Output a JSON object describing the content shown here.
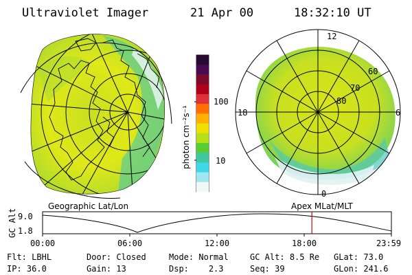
{
  "header": {
    "title": "Ultraviolet Imager",
    "date": "21 Apr 00",
    "time": "18:32:10 UT"
  },
  "geo_panel": {
    "label": "Geographic Lat/Lon"
  },
  "apex_panel": {
    "label": "Apex MLat/MLT",
    "mlt_labels": {
      "top": "12",
      "left": "18",
      "right": "6",
      "bottom": "0"
    },
    "lat_labels": [
      "60",
      "70",
      "80"
    ]
  },
  "colorbar": {
    "unit_label": "photon cm⁻²s⁻¹",
    "ticks": [
      "100",
      "10"
    ],
    "colors": [
      "#2a0a30",
      "#4a0a50",
      "#7a0a2a",
      "#b0001a",
      "#e0303a",
      "#ff7000",
      "#ffb000",
      "#f0e000",
      "#b8e018",
      "#58cc30",
      "#40c8a0",
      "#40d8e8",
      "#a0e8f0",
      "#f0f8f8"
    ]
  },
  "altitude_plot": {
    "y_label": "GC Alt",
    "y_ticks": [
      "9.0",
      "1.8"
    ],
    "x_ticks": [
      "00:00",
      "06:00",
      "12:00",
      "18:00",
      "23:59"
    ],
    "current_time_fraction": 0.772,
    "marker_color": "#cc0000"
  },
  "status": {
    "flt": {
      "label": "Flt:",
      "value": "LBHL"
    },
    "door": {
      "label": "Door:",
      "value": "Closed"
    },
    "mode": {
      "label": "Mode:",
      "value": "Normal"
    },
    "gc_alt": {
      "label": "GC Alt:",
      "value": "8.5 Re"
    },
    "glat": {
      "label": "GLat:",
      "value": "73.0"
    },
    "ip": {
      "label": "IP:",
      "value": "36.0"
    },
    "gain": {
      "label": "Gain:",
      "value": "13"
    },
    "dsp": {
      "label": "Dsp:",
      "value": "2.3"
    },
    "seq": {
      "label": "Seq:",
      "value": "39"
    },
    "glon": {
      "label": "GLon:",
      "value": "241.6"
    }
  }
}
